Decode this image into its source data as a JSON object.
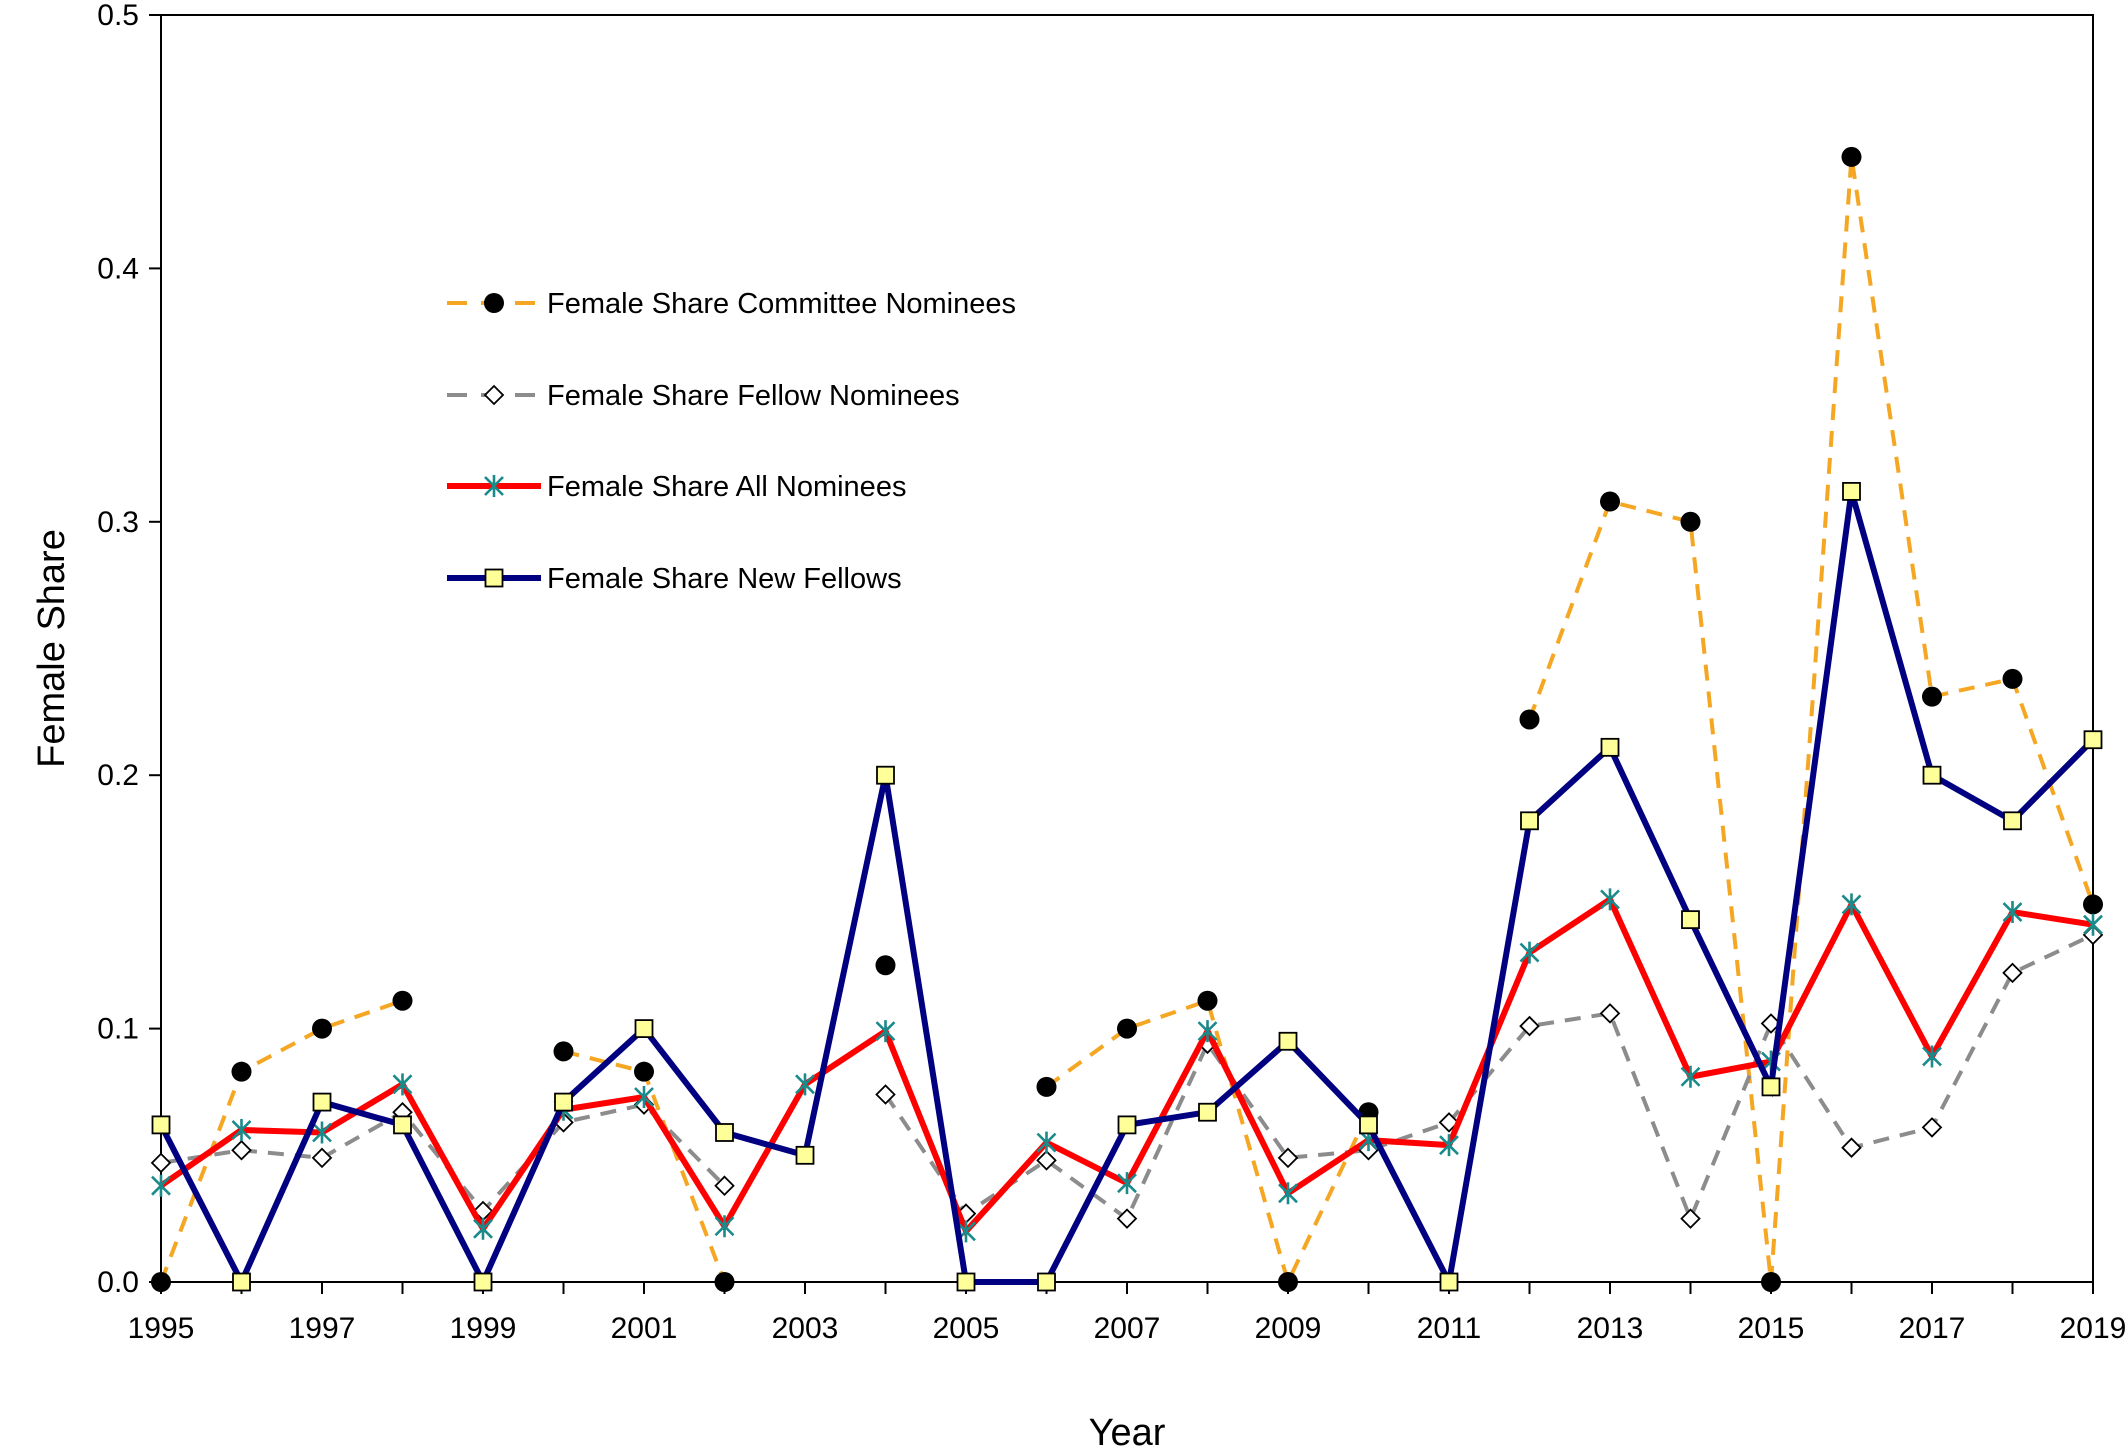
{
  "chart_data": {
    "type": "line",
    "title": "",
    "xlabel": "Year",
    "ylabel": "Female Share",
    "xlim": [
      1995,
      2019
    ],
    "ylim": [
      0,
      0.5
    ],
    "x_ticks": [
      "1995",
      "1997",
      "1999",
      "2001",
      "2003",
      "2005",
      "2007",
      "2009",
      "2011",
      "2013",
      "2015",
      "2017",
      "2019"
    ],
    "y_ticks": [
      "0.0",
      "0.1",
      "0.2",
      "0.3",
      "0.4",
      "0.5"
    ],
    "legend_position": "upper-left",
    "grid": false,
    "x": [
      1995,
      1996,
      1997,
      1998,
      1999,
      2000,
      2001,
      2002,
      2003,
      2004,
      2005,
      2006,
      2007,
      2008,
      2009,
      2010,
      2011,
      2012,
      2013,
      2014,
      2015,
      2016,
      2017,
      2018,
      2019
    ],
    "series": [
      {
        "name": "Female Share Committee Nominees",
        "color": "#f5a623",
        "line_style": "dashed",
        "marker": "filled-circle",
        "marker_color": "#000000",
        "values": [
          0.0,
          0.083,
          0.1,
          0.111,
          null,
          0.091,
          0.083,
          0.0,
          null,
          0.125,
          null,
          0.077,
          0.1,
          0.111,
          0.0,
          0.067,
          null,
          0.222,
          0.308,
          0.3,
          0.0,
          0.444,
          0.231,
          0.238,
          0.149
        ]
      },
      {
        "name": "Female Share Fellow Nominees",
        "color": "#8c8c8c",
        "line_style": "dashed",
        "marker": "open-diamond",
        "marker_color": "#000000",
        "values": [
          0.047,
          0.052,
          0.049,
          0.067,
          0.028,
          0.063,
          0.07,
          0.038,
          null,
          0.074,
          0.027,
          0.048,
          0.025,
          0.094,
          0.049,
          0.052,
          0.063,
          0.101,
          0.106,
          0.025,
          0.102,
          0.053,
          0.061,
          0.122,
          0.137
        ]
      },
      {
        "name": "Female Share All Nominees",
        "color": "#ff0000",
        "line_style": "solid",
        "marker": "asterisk",
        "marker_color": "#1a8a8a",
        "values": [
          0.038,
          0.06,
          0.059,
          0.078,
          0.021,
          0.068,
          0.073,
          0.022,
          0.078,
          0.099,
          0.02,
          0.055,
          0.039,
          0.099,
          0.035,
          0.056,
          0.054,
          0.13,
          0.151,
          0.081,
          0.087,
          0.149,
          0.089,
          0.146,
          0.141
        ]
      },
      {
        "name": "Female Share New Fellows",
        "color": "#000080",
        "line_style": "solid",
        "marker": "filled-square",
        "marker_color": "#ffff99",
        "values": [
          0.062,
          0.0,
          0.071,
          0.062,
          0.0,
          0.071,
          0.1,
          0.059,
          0.05,
          0.2,
          0.0,
          0.0,
          0.062,
          0.067,
          0.095,
          0.062,
          0.0,
          0.182,
          0.211,
          0.143,
          0.077,
          0.312,
          0.2,
          0.182,
          0.214
        ]
      }
    ]
  }
}
